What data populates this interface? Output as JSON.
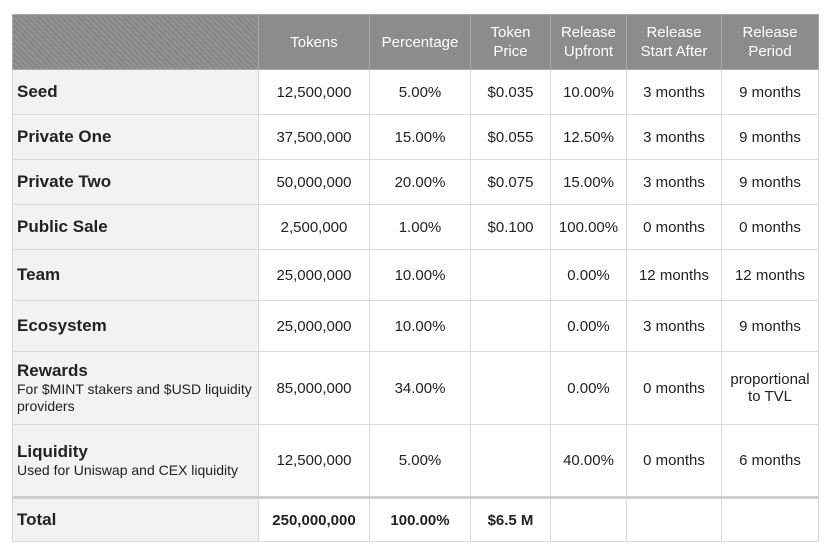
{
  "headers": {
    "tokens": "Tokens",
    "percentage": "Percentage",
    "token_price": [
      "Token",
      "Price"
    ],
    "release_upfront": [
      "Release",
      "Upfront"
    ],
    "release_start_after": [
      "Release",
      "Start After"
    ],
    "release_period": [
      "Release",
      "Period"
    ]
  },
  "rows": [
    {
      "name": "Seed",
      "desc": "",
      "tokens": "12,500,000",
      "percentage": "5.00%",
      "price": "$0.035",
      "upfront": "10.00%",
      "start": "3 months",
      "period": "9 months"
    },
    {
      "name": "Private One",
      "desc": "",
      "tokens": "37,500,000",
      "percentage": "15.00%",
      "price": "$0.055",
      "upfront": "12.50%",
      "start": "3 months",
      "period": "9 months"
    },
    {
      "name": "Private Two",
      "desc": "",
      "tokens": "50,000,000",
      "percentage": "20.00%",
      "price": "$0.075",
      "upfront": "15.00%",
      "start": "3 months",
      "period": "9 months"
    },
    {
      "name": "Public Sale",
      "desc": "",
      "tokens": "2,500,000",
      "percentage": "1.00%",
      "price": "$0.100",
      "upfront": "100.00%",
      "start": "0 months",
      "period": "0 months"
    },
    {
      "name": "Team",
      "desc": "",
      "tokens": "25,000,000",
      "percentage": "10.00%",
      "price": "",
      "upfront": "0.00%",
      "start": "12 months",
      "period": "12 months"
    },
    {
      "name": "Ecosystem",
      "desc": "",
      "tokens": "25,000,000",
      "percentage": "10.00%",
      "price": "",
      "upfront": "0.00%",
      "start": "3 months",
      "period": "9 months"
    },
    {
      "name": "Rewards",
      "desc": "For $MINT stakers and $USD liquidity providers",
      "tokens": "85,000,000",
      "percentage": "34.00%",
      "price": "",
      "upfront": "0.00%",
      "start": "0 months",
      "period": "proportional to TVL"
    },
    {
      "name": "Liquidity",
      "desc": "Used for Uniswap and CEX liquidity",
      "tokens": "12,500,000",
      "percentage": "5.00%",
      "price": "",
      "upfront": "40.00%",
      "start": "0 months",
      "period": "6 months"
    }
  ],
  "total": {
    "name": "Total",
    "tokens": "250,000,000",
    "percentage": "100.00%",
    "price": "$6.5 M",
    "upfront": "",
    "start": "",
    "period": ""
  }
}
